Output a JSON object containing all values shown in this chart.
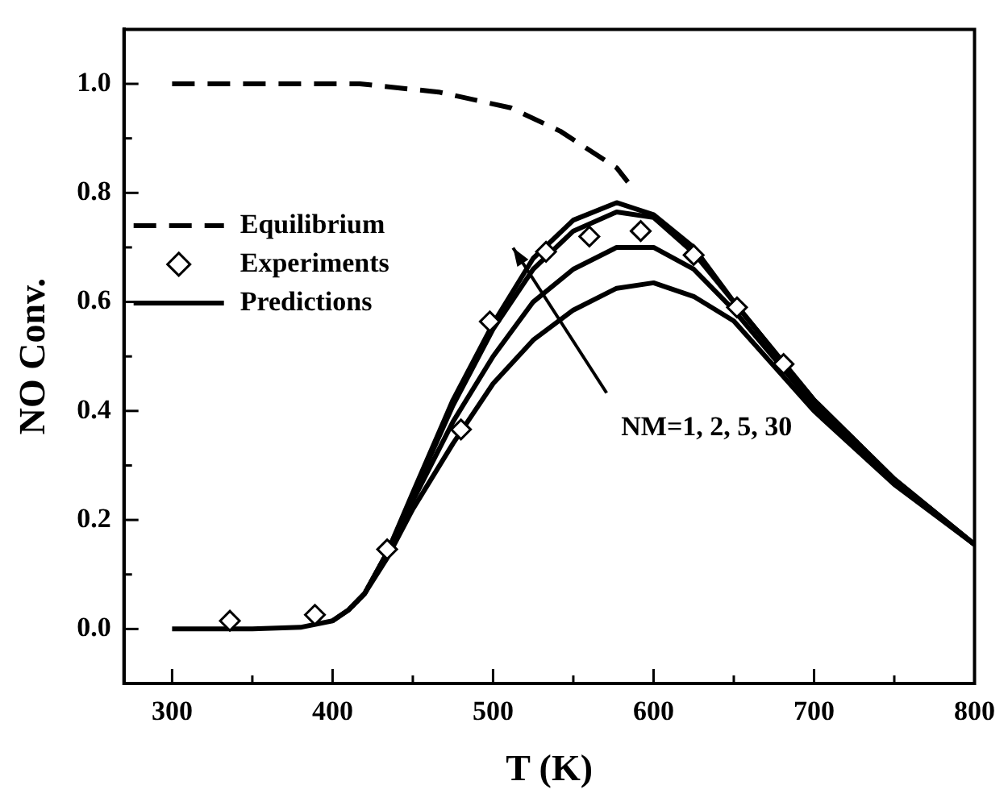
{
  "chart_data": {
    "type": "line",
    "xlabel": "T (K)",
    "ylabel": "NO Conv.",
    "xlim": [
      270,
      800
    ],
    "ylim": [
      -0.1,
      1.1
    ],
    "xticks": [
      300,
      {
        "value": 350,
        "label": null
      },
      400,
      {
        "value": 450,
        "label": null
      },
      500,
      {
        "value": 550,
        "label": null
      },
      600,
      {
        "value": 650,
        "label": null
      },
      700,
      {
        "value": 750,
        "label": null
      },
      800
    ],
    "yticks": [
      {
        "value": 0,
        "label": "0.0"
      },
      {
        "value": 0.1,
        "label": null
      },
      {
        "value": 0.2,
        "label": "0.2"
      },
      {
        "value": 0.3,
        "label": null
      },
      {
        "value": 0.4,
        "label": "0.4"
      },
      {
        "value": 0.5,
        "label": null
      },
      {
        "value": 0.6,
        "label": "0.6"
      },
      {
        "value": 0.7,
        "label": null
      },
      {
        "value": 0.8,
        "label": "0.8"
      },
      {
        "value": 0.9,
        "label": null
      },
      {
        "value": 1,
        "label": "1.0"
      }
    ],
    "grid": false,
    "legend": "left",
    "annotations": [
      "NM=1, 2, 5, 30"
    ],
    "series": [
      {
        "name": "Equilibrium",
        "type": "line",
        "line_style": "dashed",
        "color": "#000000",
        "x": [
          300,
          350,
          400,
          417,
          466,
          511,
          542,
          577,
          584
        ],
        "values": [
          1,
          1,
          1,
          1,
          0.985,
          0.956,
          0.913,
          0.846,
          0.82
        ]
      },
      {
        "name": "Experiments",
        "type": "scatter",
        "marker": "diamond",
        "color": "#000000",
        "x": [
          336,
          389,
          434,
          480,
          498,
          533,
          560,
          592,
          625,
          652,
          681
        ],
        "values": [
          0.015,
          0.026,
          0.146,
          0.366,
          0.564,
          0.692,
          0.72,
          0.73,
          0.686,
          0.59,
          0.486
        ]
      },
      {
        "name": "Predictions",
        "color": "#000000",
        "x": [
          300,
          350,
          380,
          400,
          410,
          420,
          434,
          450,
          475,
          500,
          525,
          550,
          577,
          600,
          625,
          650,
          700,
          750,
          800
        ],
        "values": [
          0,
          0,
          0.003,
          0.015,
          0.035,
          0.065,
          0.14,
          0.25,
          0.42,
          0.56,
          0.68,
          0.75,
          0.782,
          0.76,
          0.7,
          0.6,
          0.42,
          0.275,
          0.155
        ]
      },
      {
        "color": "#000000",
        "x": [
          400,
          410,
          420,
          434,
          450,
          475,
          500,
          525,
          550,
          577,
          600,
          625,
          650,
          700,
          750,
          800
        ],
        "values": [
          0.015,
          0.035,
          0.065,
          0.14,
          0.245,
          0.41,
          0.55,
          0.66,
          0.73,
          0.765,
          0.755,
          0.69,
          0.6,
          0.42,
          0.275,
          0.155
        ]
      },
      {
        "color": "#000000",
        "x": [
          410,
          420,
          434,
          450,
          475,
          500,
          525,
          550,
          577,
          600,
          625,
          650,
          700,
          750,
          800
        ],
        "values": [
          0.035,
          0.065,
          0.14,
          0.235,
          0.38,
          0.5,
          0.6,
          0.66,
          0.7,
          0.7,
          0.66,
          0.585,
          0.41,
          0.27,
          0.155
        ]
      },
      {
        "color": "#000000",
        "x": [
          420,
          434,
          450,
          475,
          500,
          525,
          550,
          577,
          600,
          625,
          650,
          700,
          750,
          800
        ],
        "values": [
          0.065,
          0.13,
          0.22,
          0.34,
          0.45,
          0.53,
          0.585,
          0.625,
          0.635,
          0.61,
          0.565,
          0.4,
          0.265,
          0.155
        ]
      }
    ]
  }
}
